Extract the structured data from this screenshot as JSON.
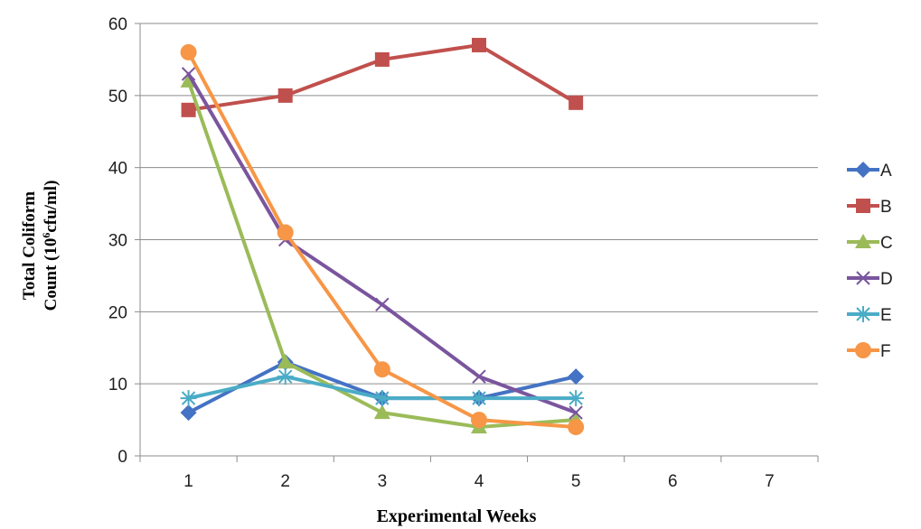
{
  "chart_data": {
    "type": "line",
    "title": "",
    "xlabel": "Experimental Weeks",
    "ylabel": {
      "line1": "Total Coliform",
      "line2_prefix": "Count (10",
      "line2_sup": "6",
      "line2_suffix": "cfu/ml)"
    },
    "x_ticks": [
      "1",
      "2",
      "3",
      "4",
      "5",
      "6",
      "7"
    ],
    "y_ticks": [
      "0",
      "10",
      "20",
      "30",
      "40",
      "50",
      "60"
    ],
    "xlim": [
      0.5,
      7.5
    ],
    "ylim": [
      0,
      60
    ],
    "grid": "horizontal",
    "legend_position": "right",
    "series": [
      {
        "name": "A",
        "color": "#4472C4",
        "marker": "diamond",
        "x": [
          1,
          2,
          3,
          4,
          5
        ],
        "values": [
          6,
          13,
          8,
          8,
          11
        ]
      },
      {
        "name": "B",
        "color": "#C0504D",
        "marker": "square",
        "x": [
          1,
          2,
          3,
          4,
          5
        ],
        "values": [
          48,
          50,
          55,
          57,
          49
        ]
      },
      {
        "name": "C",
        "color": "#9BBB59",
        "marker": "triangle",
        "x": [
          1,
          2,
          3,
          4,
          5
        ],
        "values": [
          52,
          13,
          6,
          4,
          5
        ]
      },
      {
        "name": "D",
        "color": "#7A559E",
        "marker": "x",
        "x": [
          1,
          2,
          3,
          4,
          5
        ],
        "values": [
          53,
          30,
          21,
          11,
          6
        ]
      },
      {
        "name": "E",
        "color": "#4BACC6",
        "marker": "asterisk",
        "x": [
          1,
          2,
          3,
          4,
          5
        ],
        "values": [
          8,
          11,
          8,
          8,
          8
        ]
      },
      {
        "name": "F",
        "color": "#F79646",
        "marker": "circle",
        "x": [
          1,
          2,
          3,
          4,
          5
        ],
        "values": [
          56,
          31,
          12,
          5,
          4
        ]
      }
    ]
  }
}
